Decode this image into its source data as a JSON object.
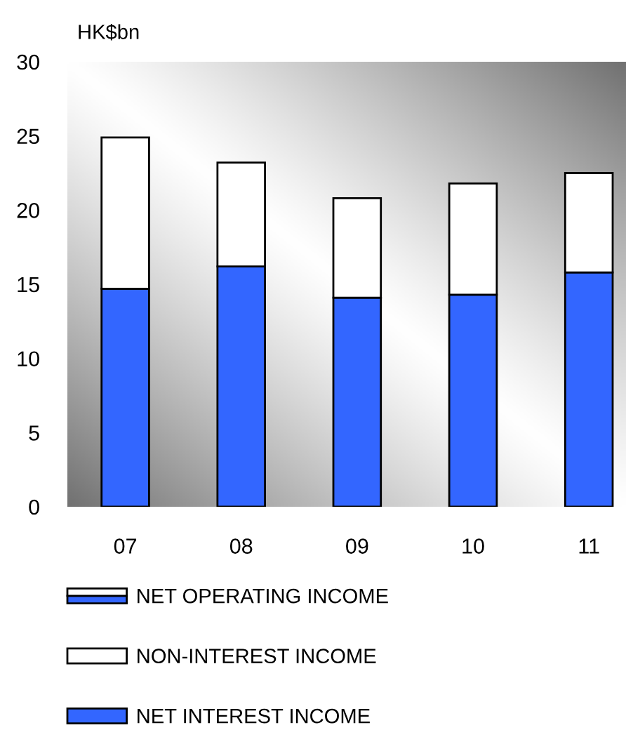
{
  "chart_data": {
    "type": "bar",
    "stacked": true,
    "ylabel": "HK$bn",
    "categories": [
      "07",
      "08",
      "09",
      "10",
      "11"
    ],
    "series": [
      {
        "name": "NET INTEREST INCOME",
        "color": "#3366ff",
        "values": [
          14.7,
          16.2,
          14.1,
          14.3,
          15.8
        ]
      },
      {
        "name": "NON-INTEREST INCOME",
        "color": "#ffffff",
        "values": [
          10.2,
          7.0,
          6.7,
          7.5,
          6.7
        ]
      }
    ],
    "ylim": [
      0,
      30
    ],
    "yticks": [
      0,
      5,
      10,
      15,
      20,
      25,
      30
    ],
    "legend": "bottom",
    "annotations": [
      "NET OPERATING INCOME"
    ]
  }
}
